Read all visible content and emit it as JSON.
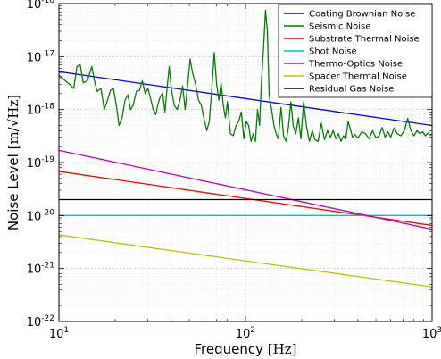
{
  "chart_data": {
    "type": "line",
    "xscale": "log",
    "yscale": "log",
    "xlim": [
      10,
      1000
    ],
    "ylim": [
      1e-22,
      1e-16
    ],
    "xlabel": "Frequency [Hz]",
    "xlabel_parts": {
      "text": "Frequency ",
      "unit": "[Hz]"
    },
    "ylabel": "Noise Level [m/√Hz]",
    "ylabel_parts": {
      "text": "Noise Level ",
      "unit": "[m/√Hz]"
    },
    "xticks": [
      {
        "value": 10,
        "base": "10",
        "exp": "1"
      },
      {
        "value": 100,
        "base": "10",
        "exp": "2"
      },
      {
        "value": 1000,
        "base": "10",
        "exp": "3"
      }
    ],
    "yticks": [
      {
        "value": 1e-22,
        "base": "10",
        "exp": "-22"
      },
      {
        "value": 1e-21,
        "base": "10",
        "exp": "-21"
      },
      {
        "value": 1e-20,
        "base": "10",
        "exp": "-20"
      },
      {
        "value": 1e-19,
        "base": "10",
        "exp": "-19"
      },
      {
        "value": 1e-18,
        "base": "10",
        "exp": "-18"
      },
      {
        "value": 1e-17,
        "base": "10",
        "exp": "-17"
      },
      {
        "value": 1e-16,
        "base": "10",
        "exp": "-16"
      }
    ],
    "grid": true,
    "legend_position": "top-right",
    "series": [
      {
        "name": "Coating Brownian Noise",
        "color": "#0000ff",
        "x": [
          10,
          1000
        ],
        "y": [
          5.2e-18,
          5e-19
        ]
      },
      {
        "name": "Seismic Noise",
        "color": "#007f00",
        "x": [
          10,
          10.8,
          11.4,
          12,
          12.5,
          13,
          13.5,
          14.2,
          15,
          15.5,
          16,
          16.8,
          17.5,
          18.2,
          18.9,
          19.6,
          20.3,
          21,
          21.8,
          22.6,
          23.4,
          24.2,
          25,
          26,
          27,
          28,
          29,
          30,
          31,
          32,
          33,
          34,
          35,
          36,
          37,
          38,
          39,
          40,
          41.5,
          43,
          44.5,
          46,
          47.5,
          49,
          50.5,
          52,
          54,
          56,
          58,
          60,
          62,
          64,
          66,
          68,
          70,
          72,
          74,
          76,
          78,
          80,
          83,
          86,
          89,
          92,
          95,
          98,
          101,
          104,
          107,
          110,
          113,
          116,
          119,
          122,
          125,
          128,
          131,
          134,
          138,
          142,
          146,
          150,
          155,
          160,
          165,
          170,
          175,
          180,
          186,
          192,
          198,
          205,
          212,
          220,
          228,
          236,
          245,
          255,
          265,
          275,
          285,
          295,
          305,
          315,
          325,
          335,
          345,
          355,
          365,
          375,
          385,
          400,
          420,
          440,
          460,
          480,
          500,
          520,
          540,
          560,
          580,
          600,
          625,
          650,
          680,
          710,
          740,
          770,
          800,
          830,
          860,
          890,
          920,
          950,
          980,
          1000
        ],
        "y": [
          4.5e-18,
          3.5e-18,
          3e-18,
          2.5e-18,
          6.5e-18,
          7e-18,
          3.2e-18,
          3.5e-18,
          6.5e-18,
          3.5e-18,
          2.2e-18,
          2.5e-18,
          1e-18,
          1.5e-18,
          2.3e-18,
          2.5e-18,
          1.2e-18,
          5e-19,
          7e-19,
          1.5e-18,
          1.9e-18,
          1e-18,
          1.2e-18,
          2.2e-18,
          2.3e-18,
          3.5e-18,
          2e-18,
          2.5e-18,
          1.6e-18,
          1e-18,
          8e-19,
          1.3e-18,
          1.8e-18,
          2e-18,
          9e-19,
          2.6e-18,
          6.5e-18,
          2.5e-18,
          1.2e-18,
          1e-18,
          1.5e-18,
          2.8e-18,
          1e-18,
          3e-18,
          9e-18,
          5e-18,
          3e-18,
          1.5e-18,
          1.2e-18,
          6.5e-19,
          4e-19,
          6e-19,
          2.5e-18,
          1.2e-17,
          3e-18,
          1.5e-18,
          3.2e-18,
          1.2e-18,
          7e-19,
          1.4e-18,
          3.5e-19,
          3.2e-19,
          5e-19,
          6e-19,
          9e-19,
          2.8e-19,
          6e-19,
          5e-19,
          2.5e-19,
          3.5e-19,
          2.5e-19,
          1e-18,
          5e-19,
          4e-18,
          1.5e-17,
          7.5e-17,
          3e-17,
          1.8e-18,
          1e-18,
          5e-19,
          3.5e-19,
          2.8e-19,
          1.1e-18,
          3.2e-19,
          2.5e-19,
          4.8e-19,
          1.4e-18,
          5e-19,
          3.5e-19,
          7e-19,
          2.8e-19,
          1.4e-18,
          5e-19,
          2.5e-19,
          4e-19,
          2.7e-19,
          2.5e-19,
          5.5e-19,
          2.7e-19,
          4e-19,
          3e-19,
          4e-19,
          2.8e-19,
          3.5e-19,
          2.5e-19,
          3.2e-19,
          2.8e-19,
          6e-19,
          4.2e-19,
          3e-19,
          3.4e-19,
          2.9e-19,
          3.8e-19,
          3.5e-19,
          2.8e-19,
          4e-19,
          2.9e-19,
          3.2e-19,
          4.6e-19,
          3e-19,
          3.8e-19,
          3e-19,
          4.5e-19,
          3.5e-19,
          3.2e-19,
          4e-19,
          6.8e-19,
          4e-19,
          3.2e-19,
          4e-19,
          3.5e-19,
          3.8e-19,
          3.2e-19,
          3.6e-19,
          3.3e-19,
          3.5e-19
        ]
      },
      {
        "name": "Substrate Thermal Noise",
        "color": "#ff0000",
        "x": [
          10,
          1000
        ],
        "y": [
          6.8e-20,
          6.5e-21
        ]
      },
      {
        "name": "Shot Noise",
        "color": "#00bfbf",
        "x": [
          10,
          1000
        ],
        "y": [
          1e-20,
          1e-20
        ]
      },
      {
        "name": "Thermo-Optics Noise",
        "color": "#bf00bf",
        "x": [
          10,
          1000
        ],
        "y": [
          1.7e-19,
          5.5e-21
        ]
      },
      {
        "name": "Spacer Thermal Noise",
        "color": "#bfbf00",
        "x": [
          10,
          1000
        ],
        "y": [
          4.3e-21,
          4.5e-22
        ]
      },
      {
        "name": "Residual Gas Noise",
        "color": "#000000",
        "x": [
          10,
          1000
        ],
        "y": [
          2e-20,
          2e-20
        ]
      }
    ]
  }
}
